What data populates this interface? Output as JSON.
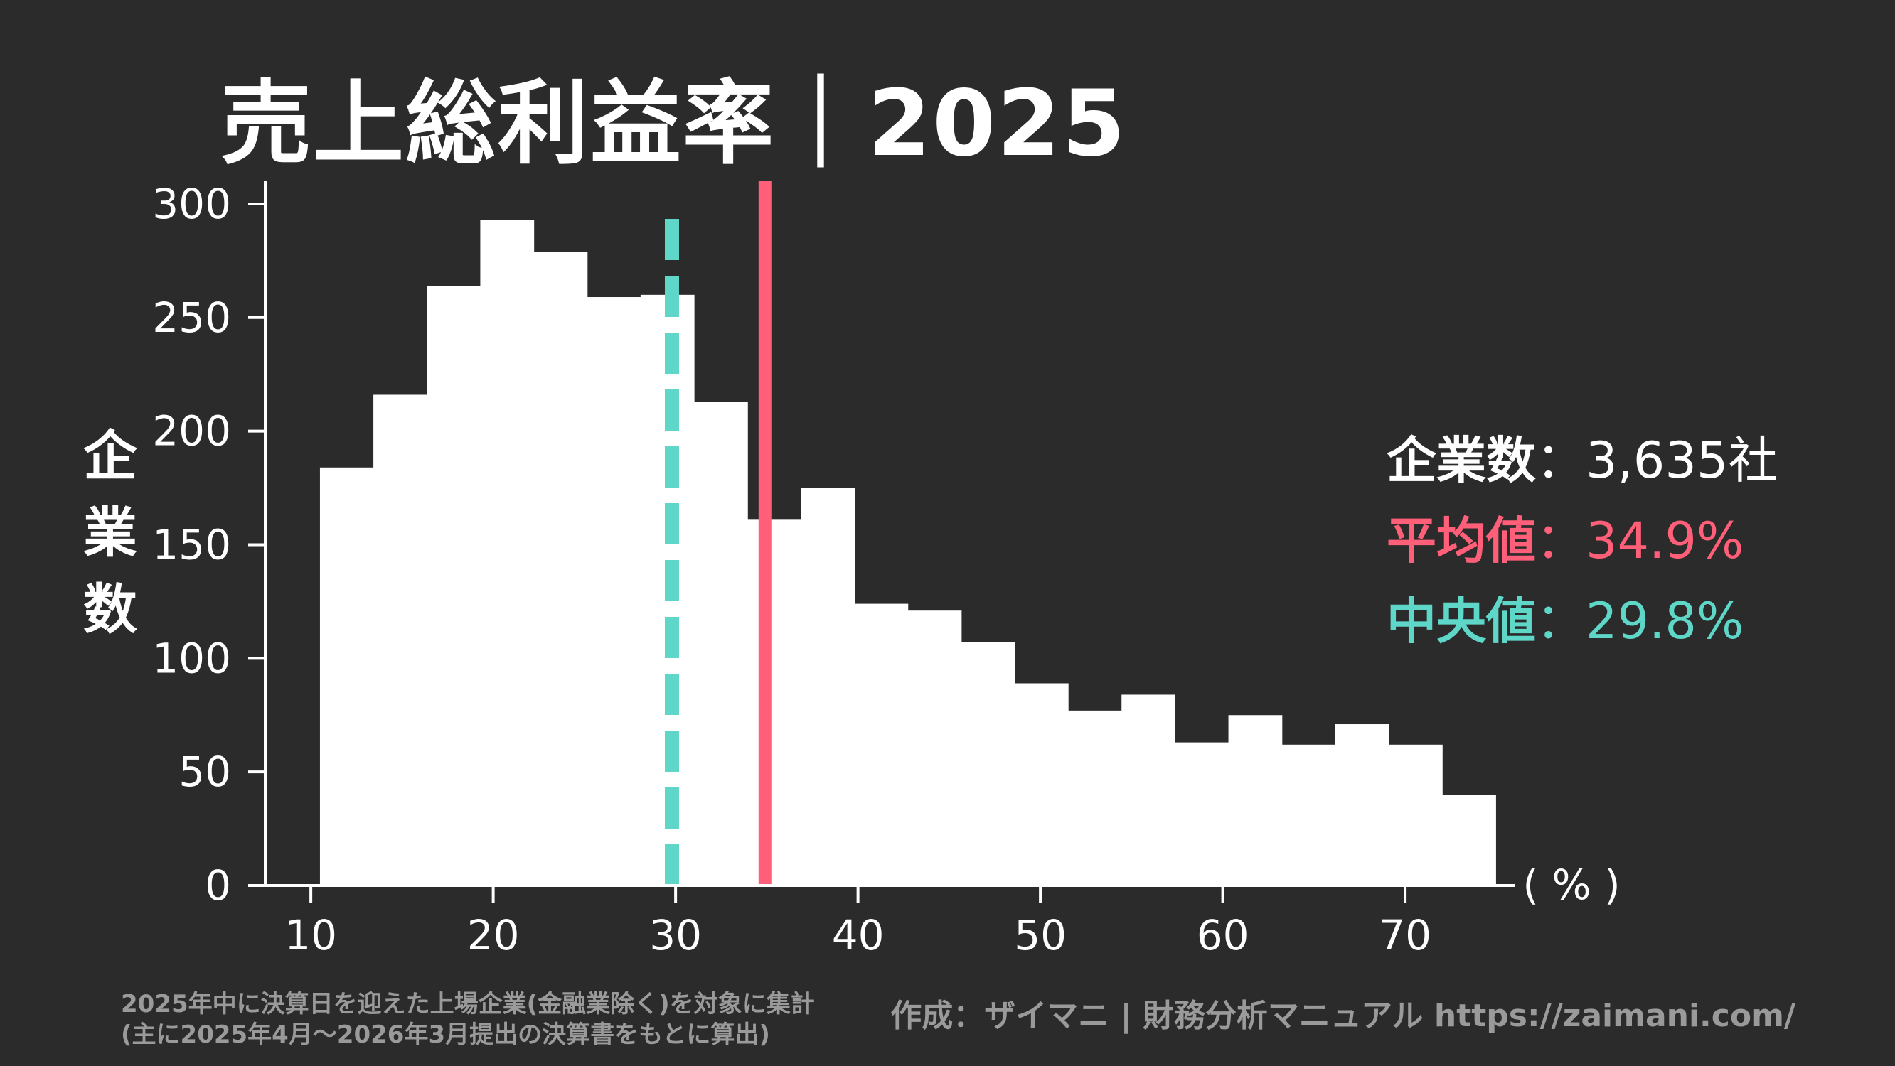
{
  "chart_data": {
    "type": "bar",
    "title": "売上総利益率｜2025",
    "ylabel": "企業数",
    "xunit": "( % )",
    "xlim": [
      7.5,
      76
    ],
    "ylim": [
      0,
      310
    ],
    "xticks": [
      10,
      20,
      30,
      40,
      50,
      60,
      70
    ],
    "yticks": [
      0,
      50,
      100,
      150,
      200,
      250,
      300
    ],
    "bin_width": 2.93,
    "bin_start": 10.5,
    "values": [
      184,
      216,
      264,
      293,
      279,
      259,
      260,
      213,
      161,
      175,
      124,
      121,
      107,
      89,
      77,
      84,
      63,
      75,
      62,
      71,
      62,
      40
    ],
    "bar_color": "#ffffff",
    "mean": 34.9,
    "median": 29.8,
    "mean_color": "#ff5f78",
    "median_color": "#5ed6c8",
    "grid": false
  },
  "stats": {
    "count_label": "企業数",
    "count_value": "：3,635社",
    "mean_label": "平均値",
    "mean_value": "：34.9%",
    "median_label": "中央値",
    "median_value": "：29.8%"
  },
  "footer": {
    "note_line1": "2025年中に決算日を迎えた上場企業(金融業除く)を対象に集計",
    "note_line2": "(主に2025年4月～2026年3月提出の決算書をもとに算出)",
    "credit": "作成：ザイマニ | 財務分析マニュアル https://zaimani.com/"
  }
}
